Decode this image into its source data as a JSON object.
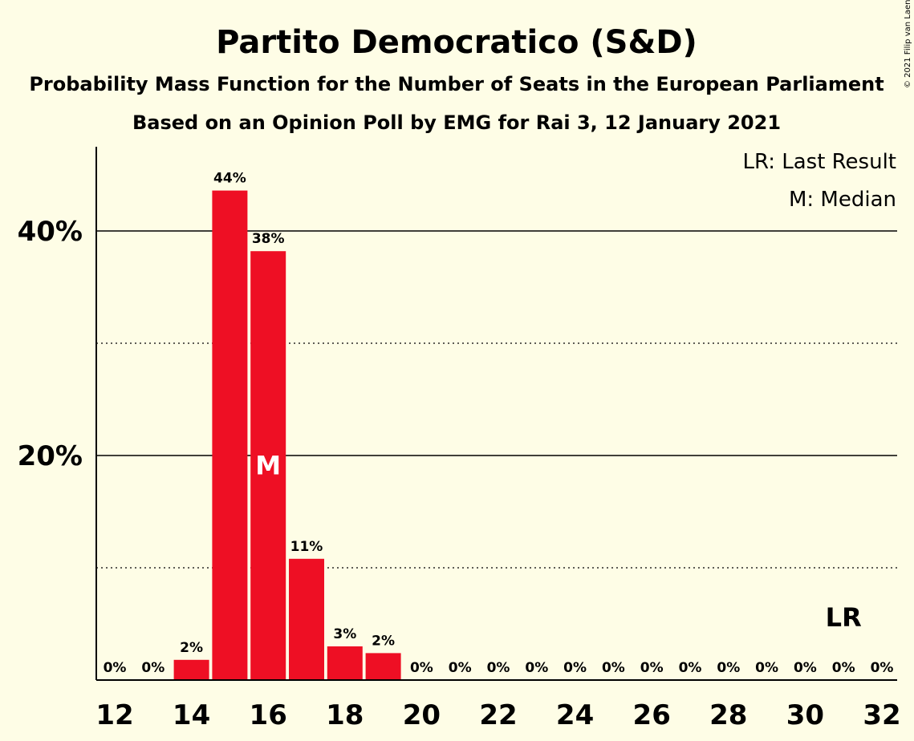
{
  "chart_data": {
    "type": "bar",
    "title": "Partito Democratico (S&D)",
    "subtitle": "Probability Mass Function for the Number of Seats in the European Parliament",
    "subtitle2": "Based on an Opinion Poll by EMG for Rai 3, 12 January 2021",
    "credit": "© 2021 Filip van Laenen",
    "legend": [
      "LR: Last Result",
      "M: Median"
    ],
    "legend_placement": "top-right",
    "categories": [
      12,
      13,
      14,
      15,
      16,
      17,
      18,
      19,
      20,
      21,
      22,
      23,
      24,
      25,
      26,
      27,
      28,
      29,
      30,
      31,
      32
    ],
    "values": [
      0,
      0,
      1.8,
      43.6,
      38.2,
      10.8,
      3.0,
      2.4,
      0,
      0,
      0,
      0,
      0,
      0,
      0,
      0,
      0,
      0,
      0,
      0,
      0
    ],
    "value_labels": [
      "0%",
      "0%",
      "2%",
      "44%",
      "38%",
      "11%",
      "3%",
      "2%",
      "0%",
      "0%",
      "0%",
      "0%",
      "0%",
      "0%",
      "0%",
      "0%",
      "0%",
      "0%",
      "0%",
      "0%",
      "0%"
    ],
    "x_tick_values": [
      12,
      14,
      16,
      18,
      20,
      22,
      24,
      26,
      28,
      30,
      32
    ],
    "y_ticks": [
      {
        "value": 20,
        "label": "20%"
      },
      {
        "value": 40,
        "label": "40%"
      }
    ],
    "y_minor_grid": [
      10,
      30
    ],
    "ylim": [
      0,
      47.5
    ],
    "median_seat": 16,
    "median_label": "M",
    "last_result_seat": 31,
    "last_result_label": "LR",
    "bar_color": "#ee0f24",
    "background": "#fefde6"
  }
}
